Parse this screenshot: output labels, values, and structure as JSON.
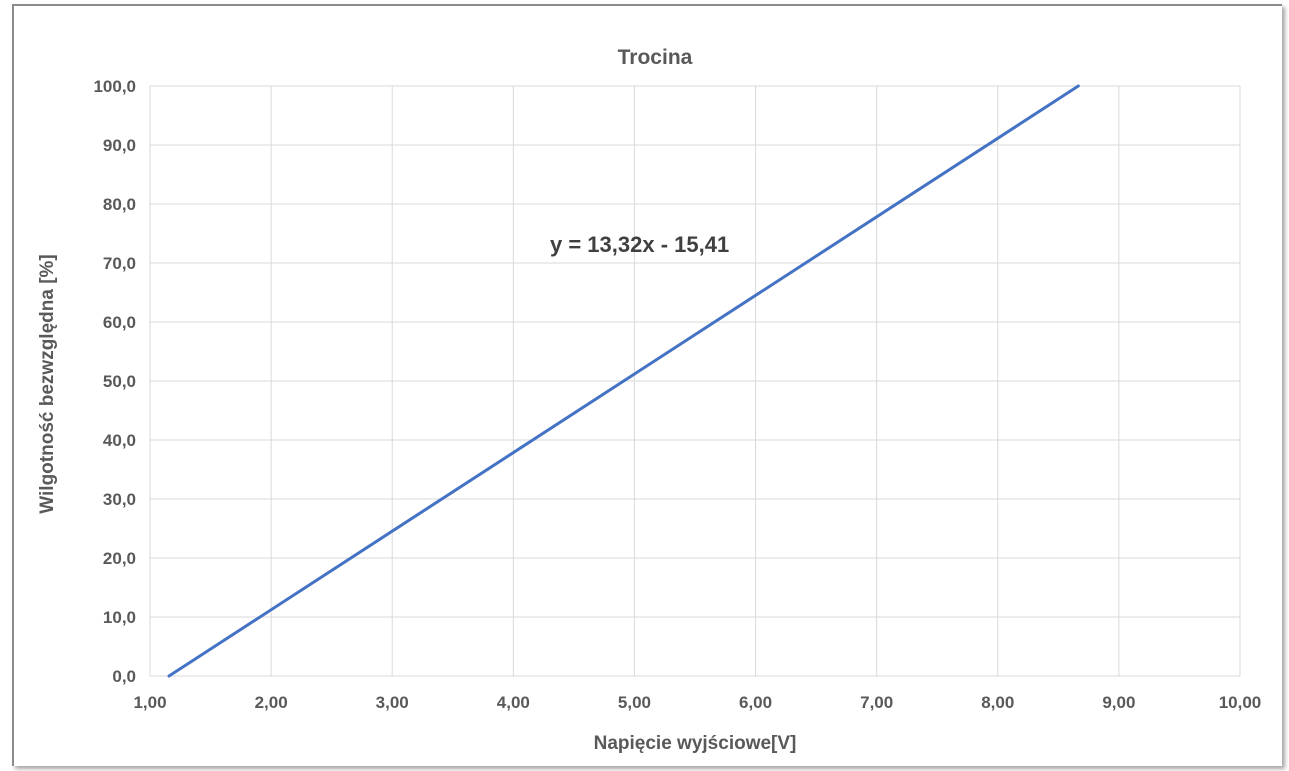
{
  "chart_data": {
    "type": "line",
    "title": "Trocina",
    "xlabel": "Napięcie wyjściowe[V]",
    "ylabel": "Wilgotność bezwzględna [%]",
    "xlim": [
      1.0,
      10.0
    ],
    "ylim": [
      0.0,
      100.0
    ],
    "x_ticks": [
      "1,00",
      "2,00",
      "3,00",
      "4,00",
      "5,00",
      "6,00",
      "7,00",
      "8,00",
      "9,00",
      "10,00"
    ],
    "y_ticks": [
      "0,0",
      "10,0",
      "20,0",
      "30,0",
      "40,0",
      "50,0",
      "60,0",
      "70,0",
      "80,0",
      "90,0",
      "100,0"
    ],
    "grid": true,
    "series": [
      {
        "x": [
          1.157,
          8.665
        ],
        "y": [
          0.0,
          100.0
        ],
        "color": "#4472c4"
      }
    ],
    "annotations": [
      {
        "text": "y = 13,32x - 15,41"
      }
    ]
  }
}
